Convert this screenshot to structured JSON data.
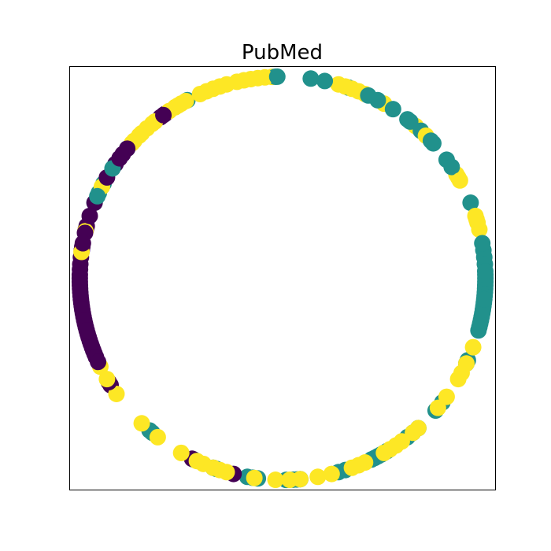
{
  "chart_data": {
    "type": "scatter",
    "title": "PubMed",
    "xlabel": "",
    "ylabel": "",
    "xlim": [
      -1.05,
      1.05
    ],
    "ylim": [
      -1.05,
      1.05
    ],
    "grid": false,
    "ticks": false,
    "legend": "none",
    "colors": {
      "class_0": "#440154",
      "class_1": "#21918c",
      "class_2": "#fde725"
    },
    "series": [
      {
        "class": 0,
        "color": "#440154",
        "angles_deg": [
          125.5,
          126,
          127,
          140,
          142,
          143.5,
          145.5,
          150,
          158,
          162,
          165,
          166,
          167,
          170,
          171,
          172,
          174,
          176,
          177.5,
          179,
          180,
          181,
          182,
          183,
          184,
          185,
          186,
          187,
          188,
          189,
          190,
          191,
          192,
          193,
          194,
          195,
          196,
          197,
          198,
          199,
          200,
          201,
          202,
          203,
          204.5,
          211,
          212,
          243.5,
          256
        ]
      },
      {
        "class": 1,
        "color": "#21918c",
        "angles_deg": [
          91.5,
          92,
          82,
          78,
          71,
          65,
          62,
          57,
          52,
          51,
          47,
          43,
          42,
          36,
          33.5,
          22,
          10,
          8,
          6,
          4,
          2,
          1,
          0,
          -1,
          -2,
          -3,
          -4,
          -5,
          -6,
          -7,
          -8,
          -9,
          -10,
          -11,
          -12,
          -13,
          -14,
          -15,
          -24,
          -25,
          -38,
          -41,
          -48,
          -50,
          -52,
          -59,
          -60,
          -61,
          -62,
          -63,
          -64,
          -72,
          -74,
          -85,
          -86,
          -87,
          -89,
          -97,
          -98.5,
          -100,
          -109,
          -110,
          -116,
          -130,
          -131,
          -202,
          -205,
          -208,
          -214.5,
          -220,
          156,
          147,
          118
        ]
      },
      {
        "class": 2,
        "color": "#fde725",
        "angles_deg": [
          112,
          114,
          118.5,
          120,
          121,
          122,
          124,
          129,
          130,
          132,
          134,
          135,
          137,
          138,
          153,
          166.5,
          172.5,
          206,
          210,
          215,
          232,
          240,
          245,
          247,
          250,
          252,
          254,
          262,
          268,
          272,
          275,
          280,
          284,
          290,
          292,
          294,
          300,
          302,
          304,
          306,
          310,
          312,
          320,
          324,
          330,
          332,
          335,
          340,
          14,
          16,
          17,
          18,
          29,
          30,
          31,
          45,
          49,
          60,
          66,
          68,
          70,
          72,
          74,
          93,
          95,
          97,
          99,
          101,
          103,
          106,
          108,
          110,
          226
        ]
      }
    ]
  }
}
